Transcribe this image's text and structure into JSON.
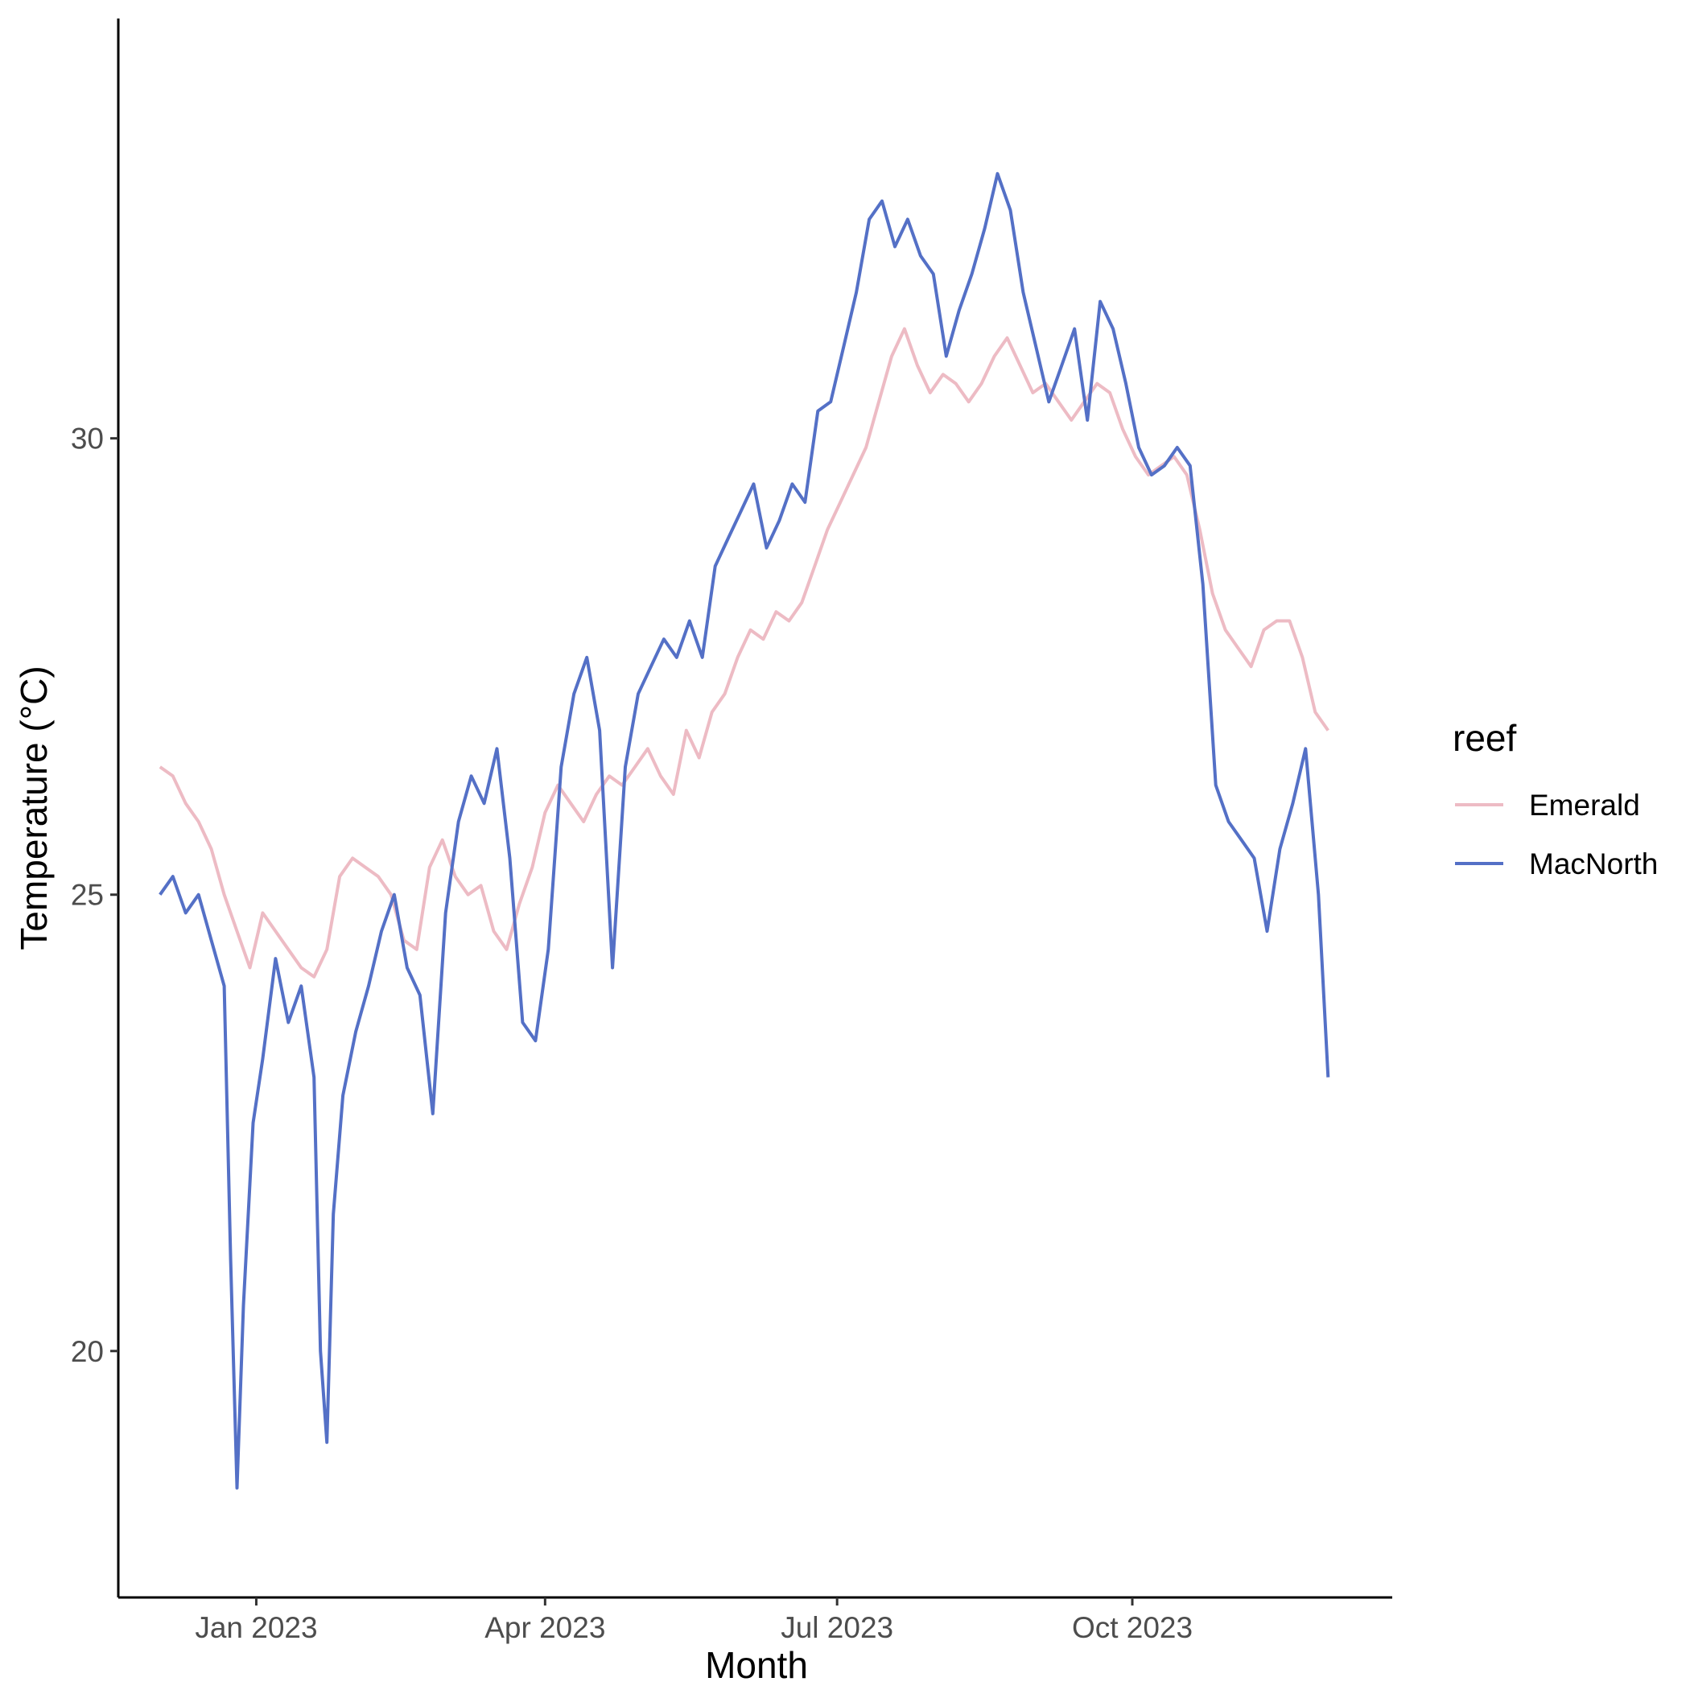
{
  "chart_data": {
    "type": "line",
    "title": "",
    "xlabel": "Month",
    "ylabel": "Temperature (°C)",
    "x_tick_labels": [
      "Jan 2023",
      "Apr 2023",
      "Jul 2023",
      "Oct 2023"
    ],
    "y_tick_labels": [
      "20",
      "25",
      "30"
    ],
    "xlim": [
      "2022-11-19",
      "2023-12-21"
    ],
    "ylim": [
      17.3,
      34.6
    ],
    "grid": false,
    "legend": {
      "title": "reef",
      "placement": "right"
    },
    "series": [
      {
        "name": "Emerald",
        "color": "#EDBBC4",
        "points": [
          [
            "2022-12-02",
            26.4
          ],
          [
            "2022-12-06",
            26.3
          ],
          [
            "2022-12-10",
            26.0
          ],
          [
            "2022-12-14",
            25.8
          ],
          [
            "2022-12-18",
            25.5
          ],
          [
            "2022-12-22",
            25.0
          ],
          [
            "2022-12-26",
            24.6
          ],
          [
            "2022-12-30",
            24.2
          ],
          [
            "2023-01-03",
            24.8
          ],
          [
            "2023-01-07",
            24.6
          ],
          [
            "2023-01-11",
            24.4
          ],
          [
            "2023-01-15",
            24.2
          ],
          [
            "2023-01-19",
            24.1
          ],
          [
            "2023-01-23",
            24.4
          ],
          [
            "2023-01-27",
            25.2
          ],
          [
            "2023-01-31",
            25.4
          ],
          [
            "2023-02-04",
            25.3
          ],
          [
            "2023-02-08",
            25.2
          ],
          [
            "2023-02-12",
            25.0
          ],
          [
            "2023-02-16",
            24.5
          ],
          [
            "2023-02-20",
            24.4
          ],
          [
            "2023-02-24",
            25.3
          ],
          [
            "2023-02-28",
            25.6
          ],
          [
            "2023-03-04",
            25.2
          ],
          [
            "2023-03-08",
            25.0
          ],
          [
            "2023-03-12",
            25.1
          ],
          [
            "2023-03-16",
            24.6
          ],
          [
            "2023-03-20",
            24.4
          ],
          [
            "2023-03-24",
            24.9
          ],
          [
            "2023-03-28",
            25.3
          ],
          [
            "2023-04-01",
            25.9
          ],
          [
            "2023-04-05",
            26.2
          ],
          [
            "2023-04-09",
            26.0
          ],
          [
            "2023-04-13",
            25.8
          ],
          [
            "2023-04-17",
            26.1
          ],
          [
            "2023-04-21",
            26.3
          ],
          [
            "2023-04-25",
            26.2
          ],
          [
            "2023-04-29",
            26.4
          ],
          [
            "2023-05-03",
            26.6
          ],
          [
            "2023-05-07",
            26.3
          ],
          [
            "2023-05-11",
            26.1
          ],
          [
            "2023-05-15",
            26.8
          ],
          [
            "2023-05-19",
            26.5
          ],
          [
            "2023-05-23",
            27.0
          ],
          [
            "2023-05-27",
            27.2
          ],
          [
            "2023-05-31",
            27.6
          ],
          [
            "2023-06-04",
            27.9
          ],
          [
            "2023-06-08",
            27.8
          ],
          [
            "2023-06-12",
            28.1
          ],
          [
            "2023-06-16",
            28.0
          ],
          [
            "2023-06-20",
            28.2
          ],
          [
            "2023-06-24",
            28.6
          ],
          [
            "2023-06-28",
            29.0
          ],
          [
            "2023-07-02",
            29.3
          ],
          [
            "2023-07-06",
            29.6
          ],
          [
            "2023-07-10",
            29.9
          ],
          [
            "2023-07-14",
            30.4
          ],
          [
            "2023-07-18",
            30.9
          ],
          [
            "2023-07-22",
            31.2
          ],
          [
            "2023-07-26",
            30.8
          ],
          [
            "2023-07-30",
            30.5
          ],
          [
            "2023-08-03",
            30.7
          ],
          [
            "2023-08-07",
            30.6
          ],
          [
            "2023-08-11",
            30.4
          ],
          [
            "2023-08-15",
            30.6
          ],
          [
            "2023-08-19",
            30.9
          ],
          [
            "2023-08-23",
            31.1
          ],
          [
            "2023-08-27",
            30.8
          ],
          [
            "2023-08-31",
            30.5
          ],
          [
            "2023-09-04",
            30.6
          ],
          [
            "2023-09-08",
            30.4
          ],
          [
            "2023-09-12",
            30.2
          ],
          [
            "2023-09-16",
            30.4
          ],
          [
            "2023-09-20",
            30.6
          ],
          [
            "2023-09-24",
            30.5
          ],
          [
            "2023-09-28",
            30.1
          ],
          [
            "2023-10-02",
            29.8
          ],
          [
            "2023-10-06",
            29.6
          ],
          [
            "2023-10-10",
            29.7
          ],
          [
            "2023-10-14",
            29.8
          ],
          [
            "2023-10-18",
            29.6
          ],
          [
            "2023-10-22",
            29.0
          ],
          [
            "2023-10-26",
            28.3
          ],
          [
            "2023-10-30",
            27.9
          ],
          [
            "2023-11-03",
            27.7
          ],
          [
            "2023-11-07",
            27.5
          ],
          [
            "2023-11-11",
            27.9
          ],
          [
            "2023-11-15",
            28.0
          ],
          [
            "2023-11-19",
            28.0
          ],
          [
            "2023-11-23",
            27.6
          ],
          [
            "2023-11-27",
            27.0
          ],
          [
            "2023-12-01",
            26.8
          ]
        ]
      },
      {
        "name": "MacNorth",
        "color": "#5470C6",
        "points": [
          [
            "2022-12-02",
            25.0
          ],
          [
            "2022-12-06",
            25.2
          ],
          [
            "2022-12-10",
            24.8
          ],
          [
            "2022-12-14",
            25.0
          ],
          [
            "2022-12-18",
            24.5
          ],
          [
            "2022-12-22",
            24.0
          ],
          [
            "2022-12-24",
            21.0
          ],
          [
            "2022-12-26",
            18.5
          ],
          [
            "2022-12-28",
            20.5
          ],
          [
            "2022-12-31",
            22.5
          ],
          [
            "2023-01-03",
            23.2
          ],
          [
            "2023-01-07",
            24.3
          ],
          [
            "2023-01-11",
            23.6
          ],
          [
            "2023-01-15",
            24.0
          ],
          [
            "2023-01-19",
            23.0
          ],
          [
            "2023-01-21",
            20.0
          ],
          [
            "2023-01-23",
            19.0
          ],
          [
            "2023-01-25",
            21.5
          ],
          [
            "2023-01-28",
            22.8
          ],
          [
            "2023-02-01",
            23.5
          ],
          [
            "2023-02-05",
            24.0
          ],
          [
            "2023-02-09",
            24.6
          ],
          [
            "2023-02-13",
            25.0
          ],
          [
            "2023-02-17",
            24.2
          ],
          [
            "2023-02-21",
            23.9
          ],
          [
            "2023-02-25",
            22.6
          ],
          [
            "2023-03-01",
            24.8
          ],
          [
            "2023-03-05",
            25.8
          ],
          [
            "2023-03-09",
            26.3
          ],
          [
            "2023-03-13",
            26.0
          ],
          [
            "2023-03-17",
            26.6
          ],
          [
            "2023-03-21",
            25.4
          ],
          [
            "2023-03-25",
            23.6
          ],
          [
            "2023-03-29",
            23.4
          ],
          [
            "2023-04-02",
            24.4
          ],
          [
            "2023-04-06",
            26.4
          ],
          [
            "2023-04-10",
            27.2
          ],
          [
            "2023-04-14",
            27.6
          ],
          [
            "2023-04-18",
            26.8
          ],
          [
            "2023-04-22",
            24.2
          ],
          [
            "2023-04-26",
            26.4
          ],
          [
            "2023-04-30",
            27.2
          ],
          [
            "2023-05-04",
            27.5
          ],
          [
            "2023-05-08",
            27.8
          ],
          [
            "2023-05-12",
            27.6
          ],
          [
            "2023-05-16",
            28.0
          ],
          [
            "2023-05-20",
            27.6
          ],
          [
            "2023-05-24",
            28.6
          ],
          [
            "2023-05-28",
            28.9
          ],
          [
            "2023-06-01",
            29.2
          ],
          [
            "2023-06-05",
            29.5
          ],
          [
            "2023-06-09",
            28.8
          ],
          [
            "2023-06-13",
            29.1
          ],
          [
            "2023-06-17",
            29.5
          ],
          [
            "2023-06-21",
            29.3
          ],
          [
            "2023-06-25",
            30.3
          ],
          [
            "2023-06-29",
            30.4
          ],
          [
            "2023-07-03",
            31.0
          ],
          [
            "2023-07-07",
            31.6
          ],
          [
            "2023-07-11",
            32.4
          ],
          [
            "2023-07-15",
            32.6
          ],
          [
            "2023-07-19",
            32.1
          ],
          [
            "2023-07-23",
            32.4
          ],
          [
            "2023-07-27",
            32.0
          ],
          [
            "2023-07-31",
            31.8
          ],
          [
            "2023-08-04",
            30.9
          ],
          [
            "2023-08-08",
            31.4
          ],
          [
            "2023-08-12",
            31.8
          ],
          [
            "2023-08-16",
            32.3
          ],
          [
            "2023-08-20",
            32.9
          ],
          [
            "2023-08-24",
            32.5
          ],
          [
            "2023-08-28",
            31.6
          ],
          [
            "2023-09-01",
            31.0
          ],
          [
            "2023-09-05",
            30.4
          ],
          [
            "2023-09-09",
            30.8
          ],
          [
            "2023-09-13",
            31.2
          ],
          [
            "2023-09-17",
            30.2
          ],
          [
            "2023-09-21",
            31.5
          ],
          [
            "2023-09-25",
            31.2
          ],
          [
            "2023-09-29",
            30.6
          ],
          [
            "2023-10-03",
            29.9
          ],
          [
            "2023-10-07",
            29.6
          ],
          [
            "2023-10-11",
            29.7
          ],
          [
            "2023-10-15",
            29.9
          ],
          [
            "2023-10-19",
            29.7
          ],
          [
            "2023-10-23",
            28.4
          ],
          [
            "2023-10-27",
            26.2
          ],
          [
            "2023-10-31",
            25.8
          ],
          [
            "2023-11-04",
            25.6
          ],
          [
            "2023-11-08",
            25.4
          ],
          [
            "2023-11-12",
            24.6
          ],
          [
            "2023-11-16",
            25.5
          ],
          [
            "2023-11-20",
            26.0
          ],
          [
            "2023-11-24",
            26.6
          ],
          [
            "2023-11-28",
            25.0
          ],
          [
            "2023-12-01",
            23.0
          ]
        ]
      }
    ]
  }
}
